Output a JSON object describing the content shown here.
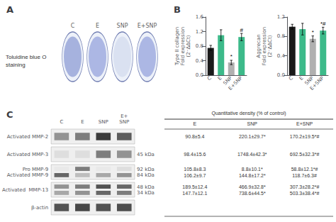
{
  "chart_data": [
    {
      "type": "wells",
      "title": "A",
      "subtitle": "Toluidine blue O\nstaining",
      "categories": [
        "C",
        "E",
        "SNP",
        "E+SNP"
      ],
      "colors": [
        "#8090d0",
        "#8898d8",
        "#d0d8ec",
        "#8898d8"
      ]
    },
    {
      "type": "bar",
      "title": "B",
      "ylabel": "Type II collagen\nFold expression\n(2⁻ΔΔCt)",
      "categories": [
        "C",
        "E",
        "SNP",
        "E+SNP"
      ],
      "values": [
        0.75,
        1.1,
        0.35,
        1.05
      ],
      "errors": [
        0.07,
        0.15,
        0.06,
        0.1
      ],
      "colors": [
        "#1a1a1a",
        "#3dba8a",
        "#b0b0b0",
        "#3dba8a"
      ],
      "ylim": [
        0.0,
        1.6
      ],
      "yticks": [
        {
          "value": 0.0,
          "label": "0.0"
        },
        0.4,
        0.8,
        1.2,
        1.6
      ],
      "annotations": [
        {
          "x": "SNP",
          "text": "*"
        },
        {
          "x": "E+SNP",
          "text": "#"
        }
      ],
      "grid": false
    },
    {
      "type": "bar",
      "ylabel": "Aggrecan\nFold expression\n(2⁻ΔΔCt)",
      "categories": [
        "C",
        "E",
        "SNP",
        "E+SNP"
      ],
      "values": [
        1.0,
        0.95,
        0.75,
        0.92
      ],
      "errors": [
        0.05,
        0.12,
        0.06,
        0.07
      ],
      "colors": [
        "#1a1a1a",
        "#3dba8a",
        "#b0b0b0",
        "#3dba8a"
      ],
      "ylim": [
        0.0,
        1.2
      ],
      "yticks": [
        {
          "value": 0.0,
          "label": "0.0"
        },
        0.4,
        0.8,
        1.2
      ],
      "annotations": [
        {
          "x": "SNP",
          "text": "*"
        },
        {
          "x": "E+SNP",
          "text": "*#"
        }
      ],
      "grid": false
    },
    {
      "type": "blot",
      "title": "C",
      "columns": [
        "C",
        "E",
        "SNP",
        "E+\nSNP"
      ],
      "rows": [
        "Activated MMP-2",
        "Activated MMP-3",
        "Pro MMP-9\nActivated MMP-9",
        "Activated  MMP-13",
        "β-actin"
      ],
      "right_labels": [
        null,
        "45 kDa",
        "92 kDa\n84 kDa",
        "48 kDa\n34 kDa",
        null
      ],
      "values": [
        [
          [
            0.5,
            0.6,
            0.9,
            0.75
          ]
        ],
        [
          [
            0.15,
            0.15,
            0.6,
            0.5
          ]
        ],
        [
          [
            0.1,
            0.6,
            0.1,
            0.15
          ],
          [
            0.7,
            0.3,
            0.4,
            0.5
          ]
        ],
        [
          [
            0.5,
            0.6,
            0.8,
            0.7
          ],
          [
            0.4,
            0.5,
            0.7,
            0.6
          ]
        ],
        [
          [
            0.8,
            0.85,
            0.8,
            0.82
          ]
        ]
      ]
    },
    {
      "type": "table",
      "title": "Quantitative density (% of control)",
      "columns": [
        "E",
        "SNP",
        "E+SNP"
      ],
      "rows": [
        [
          "90.8±5.4",
          "220.1±29.7*",
          "170.2±19.5*#"
        ],
        [
          "98.4±15.6",
          "1748.4±42.3*",
          "692.5±32.3*#"
        ],
        [
          "105.8±8.3\n106.2±9.7",
          "8.8±10.1*\n144.8±17.2*",
          "58.8±12.1*#\n118.7±6.3#"
        ],
        [
          "189.5±12.4\n147.7±12.1",
          "466.9±32.8*\n738.6±44.5*",
          "307.3±28.2*#\n503.3±38.4*#"
        ]
      ]
    }
  ]
}
